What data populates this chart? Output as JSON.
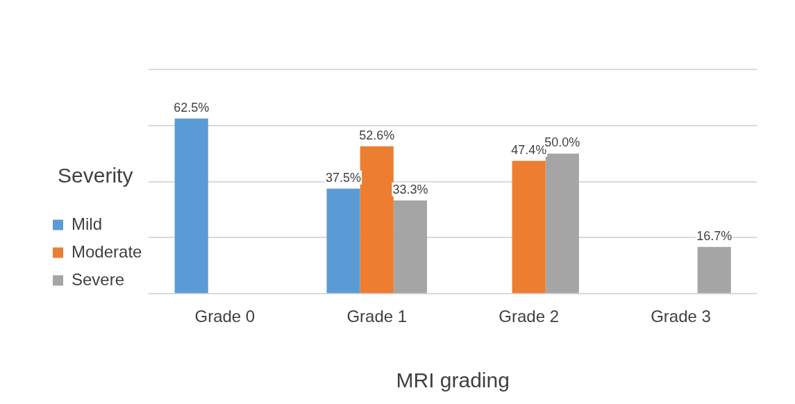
{
  "chart_data": {
    "type": "bar",
    "xlabel": "MRI grading",
    "legend_title": "Severity",
    "legend": "left",
    "grid": "y",
    "tick_labels": "x",
    "categories": [
      "Grade 0",
      "Grade 1",
      "Grade 2",
      "Grade 3"
    ],
    "ylim": [
      0,
      80
    ],
    "yticks": [
      {
        "value": 0,
        "label": null
      },
      {
        "value": 20,
        "label": null
      },
      {
        "value": 40,
        "label": null
      },
      {
        "value": 60,
        "label": null
      },
      {
        "value": 80,
        "label": null
      }
    ],
    "series": [
      {
        "name": "Mild",
        "color": "#5b9bd5",
        "values": [
          62.5,
          37.5,
          0,
          0
        ],
        "value_labels": [
          "62.5%",
          "37.5%",
          null,
          null
        ]
      },
      {
        "name": "Moderate",
        "color": "#ed7d31",
        "values": [
          0,
          52.6,
          47.4,
          0
        ],
        "value_labels": [
          null,
          "52.6%",
          "47.4%",
          null
        ]
      },
      {
        "name": "Severe",
        "color": "#a5a5a5",
        "values": [
          0,
          33.3,
          50.0,
          16.7
        ],
        "value_labels": [
          null,
          "33.3%",
          "50.0%",
          "16.7%"
        ]
      }
    ]
  }
}
